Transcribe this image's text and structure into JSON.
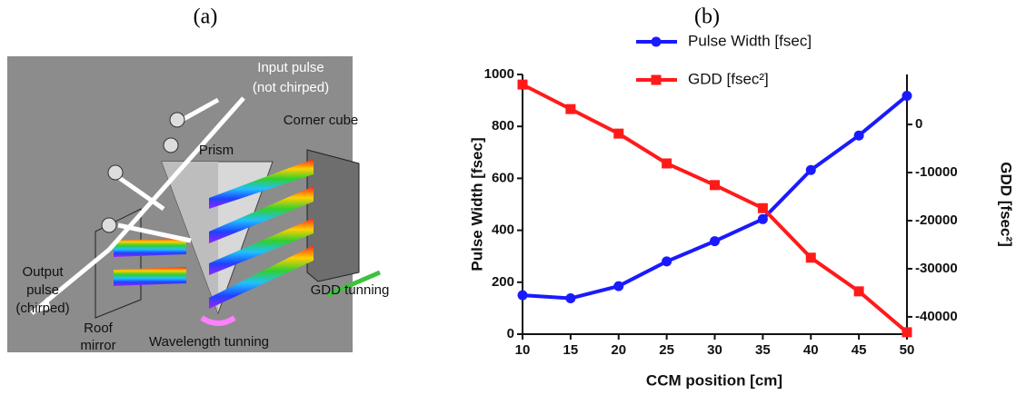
{
  "panel_labels": [
    "(a)",
    "(b)"
  ],
  "diagram": {
    "input_pulse": [
      "Input pulse",
      "(not chirped)"
    ],
    "prism": "Prism",
    "corner_cube": "Corner cube",
    "output_pulse": [
      "Output",
      "pulse",
      "(chirped)"
    ],
    "roof_mirror": [
      "Roof",
      "mirror"
    ],
    "gdd_tuning": "GDD tunning",
    "wavelength_tuning": "Wavelength tunning"
  },
  "chart_data": {
    "type": "line",
    "x_label": "CCM position [cm]",
    "y_label": "Pulse Width [fsec]",
    "y2_label": "GDD [fsec²]",
    "x": [
      10,
      15,
      20,
      25,
      30,
      35,
      40,
      45,
      50
    ],
    "xlim": [
      10,
      50
    ],
    "xticks": [
      10,
      15,
      20,
      25,
      30,
      35,
      40,
      45,
      50
    ],
    "ylim": [
      0,
      1000
    ],
    "yticks": [
      0,
      200,
      400,
      600,
      800,
      1000
    ],
    "y2lim": [
      -43600,
      10400
    ],
    "y2ticks": [
      0,
      -10000,
      -20000,
      -30000,
      -40000
    ],
    "series": [
      {
        "name": "Pulse Width [fsec]",
        "color": "#1a1aff",
        "marker": "circle",
        "values": [
          150,
          138,
          185,
          280,
          358,
          443,
          632,
          765,
          918
        ]
      },
      {
        "name": "GDD [fsec²]",
        "color": "#ff1a1a",
        "marker": "square",
        "axis": "y2",
        "values": [
          8300,
          3200,
          -1900,
          -8100,
          -12600,
          -17400,
          -27700,
          -34700,
          -43200
        ]
      }
    ]
  }
}
